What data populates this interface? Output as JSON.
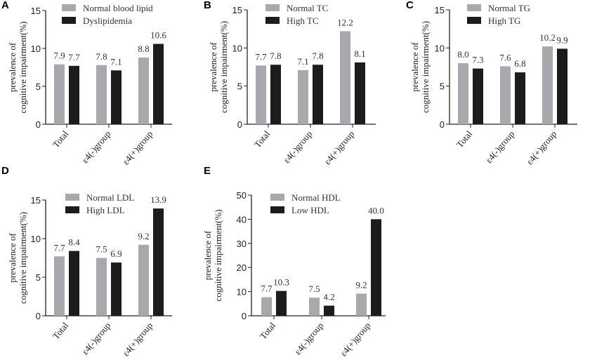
{
  "colors": {
    "normal": "#a9a9ad",
    "abnormal": "#1c1c1c"
  },
  "chart_data": [
    {
      "panel": "A",
      "type": "bar",
      "categories": [
        "Total",
        "ε4(-)group",
        "ε4(+)group"
      ],
      "ylabel": [
        "prevalence of",
        "cognitive impairment(%)"
      ],
      "ylim": [
        0,
        15
      ],
      "yticks": [
        0,
        5,
        10,
        15
      ],
      "series": [
        {
          "name": "Normal blood lipid",
          "values": [
            7.9,
            7.8,
            8.8
          ],
          "labels": [
            "7.9",
            "7.8",
            "8.8"
          ]
        },
        {
          "name": "Dyslipidemia",
          "values": [
            7.7,
            7.1,
            10.6
          ],
          "labels": [
            "7.7",
            "7.1",
            "10.6"
          ]
        }
      ]
    },
    {
      "panel": "B",
      "type": "bar",
      "categories": [
        "Total",
        "ε4(-)group",
        "ε4(+)group"
      ],
      "ylabel": [
        "prevalence of",
        "cognitive impairment(%)"
      ],
      "ylim": [
        0,
        15
      ],
      "yticks": [
        0,
        5,
        10,
        15
      ],
      "series": [
        {
          "name": "Normal TC",
          "values": [
            7.7,
            7.1,
            12.2
          ],
          "labels": [
            "7.7",
            "7.1",
            "12.2"
          ]
        },
        {
          "name": "High TC",
          "values": [
            7.8,
            7.8,
            8.1
          ],
          "labels": [
            "7.8",
            "7.8",
            "8.1"
          ]
        }
      ]
    },
    {
      "panel": "C",
      "type": "bar",
      "categories": [
        "Total",
        "ε4(-)group",
        "ε4(+)group"
      ],
      "ylabel": [
        "prevalence of",
        "cognitive impairment(%)"
      ],
      "ylim": [
        0,
        15
      ],
      "yticks": [
        0,
        5,
        10,
        15
      ],
      "series": [
        {
          "name": "Normal TG",
          "values": [
            8.0,
            7.6,
            10.2
          ],
          "labels": [
            "8.0",
            "7.6",
            "10.2"
          ]
        },
        {
          "name": "High TG",
          "values": [
            7.3,
            6.8,
            9.9
          ],
          "labels": [
            "7.3",
            "6.8",
            "9.9"
          ]
        }
      ]
    },
    {
      "panel": "D",
      "type": "bar",
      "categories": [
        "Total",
        "ε4(-)group",
        "ε4(+)group"
      ],
      "ylabel": [
        "prevalence of",
        "cognitive impairment(%)"
      ],
      "ylim": [
        0,
        15
      ],
      "yticks": [
        0,
        5,
        10,
        15
      ],
      "series": [
        {
          "name": "Normal LDL",
          "values": [
            7.7,
            7.5,
            9.2
          ],
          "labels": [
            "7.7",
            "7.5",
            "9.2"
          ]
        },
        {
          "name": "High LDL",
          "values": [
            8.4,
            6.9,
            13.9
          ],
          "labels": [
            "8.4",
            "6.9",
            "13.9"
          ]
        }
      ]
    },
    {
      "panel": "E",
      "type": "bar",
      "categories": [
        "Total",
        "ε4(-)group",
        "ε4(+)group"
      ],
      "ylabel": [
        "prevalence of",
        "cognitive impairment(%)"
      ],
      "ylim": [
        0,
        50
      ],
      "yticks": [
        0,
        10,
        20,
        30,
        40,
        50
      ],
      "series": [
        {
          "name": "Normal HDL",
          "values": [
            7.7,
            7.5,
            9.2
          ],
          "labels": [
            "7.7",
            "7.5",
            "9.2"
          ]
        },
        {
          "name": "Low HDL",
          "values": [
            10.3,
            4.2,
            40.0
          ],
          "labels": [
            "10.3",
            "4.2",
            "40.0"
          ]
        }
      ]
    }
  ]
}
